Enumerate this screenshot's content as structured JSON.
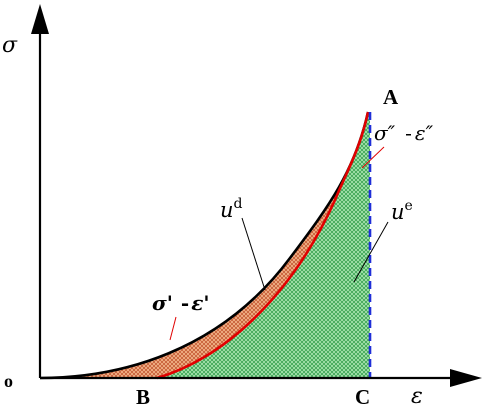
{
  "labels": {
    "y_axis": "σ",
    "x_axis": "ε",
    "origin": "o",
    "point_a": "A",
    "point_b": "B",
    "point_c": "C",
    "unloading_curve_sigma": "σ″",
    "unloading_curve_sep": "-",
    "unloading_curve_eps": "ε″",
    "loading_curve_sigma": "σ'",
    "loading_curve_sep": "-",
    "loading_curve_eps": "ε'",
    "dissipated_energy_base": "u",
    "dissipated_energy_sup": "d",
    "elastic_energy_base": "u",
    "elastic_energy_sup": "e"
  },
  "colors": {
    "axis": "#000000",
    "loading_curve": "#000000",
    "unloading_curve": "#e00000",
    "vertical_line_ac": "#1f2fd8",
    "dissipated_region_fill": "#f2b48a",
    "dissipated_region_hatch": "#c0502a",
    "elastic_region_fill": "#a8e6b0",
    "elastic_region_hatch": "#2e9a48",
    "leader_line": "#000000",
    "label_leader_line": "#e00000"
  }
}
